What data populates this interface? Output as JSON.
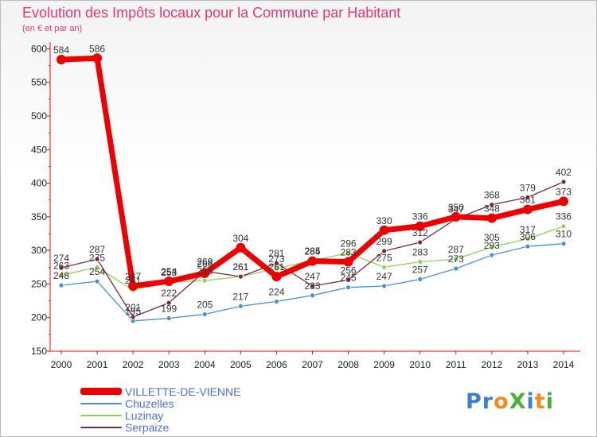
{
  "title": "Evolution des Impôts locaux pour la Commune par Habitant",
  "subtitle": "(en € et par an)",
  "logo": {
    "text": "ProXiti",
    "letter_colors": [
      "#3a7fd5",
      "#3a7fd5",
      "#f28b1e",
      "#4cae3c",
      "#3a7fd5",
      "#f28b1e",
      "#4cae3c"
    ]
  },
  "chart_data": {
    "type": "line",
    "title": "Evolution des Impôts locaux pour la Commune par Habitant",
    "ylabel": "(en € et par an)",
    "xlabel": "",
    "x": [
      "2000",
      "2001",
      "2002",
      "2003",
      "2004",
      "2005",
      "2006",
      "2007",
      "2008",
      "2009",
      "2010",
      "2011",
      "2012",
      "2013",
      "2014"
    ],
    "ylim": [
      150,
      610
    ],
    "yticks": [
      "150",
      "200",
      "250",
      "300",
      "350",
      "400",
      "450",
      "500",
      "550",
      "600"
    ],
    "grid": false,
    "legend_position": "bottom-left",
    "series": [
      {
        "name": "VILLETTE-DE-VIENNE",
        "color": "#ee0000",
        "values": [
          584,
          586,
          247,
          254,
          266,
          304,
          261,
          284,
          283,
          330,
          336,
          350,
          348,
          361,
          373
        ],
        "labels": [
          "584",
          "586",
          "247",
          "254",
          "266",
          "304",
          "261",
          "284",
          "283",
          "330",
          "336",
          "350",
          "348",
          "361",
          "373"
        ]
      },
      {
        "name": "Chuzelles",
        "color": "#4a90d0",
        "values": [
          248,
          254,
          195,
          199,
          205,
          217,
          224,
          233,
          245,
          247,
          257,
          273,
          293,
          306,
          310
        ],
        "labels": [
          "248",
          "254",
          "195",
          "199",
          "205",
          "217",
          "224",
          "233",
          "245",
          "247",
          "257",
          "273",
          "293",
          "306",
          "310"
        ]
      },
      {
        "name": "Luzinay",
        "color": "#8fd25a",
        "values": [
          263,
          275,
          241,
          253,
          255,
          261,
          273,
          285,
          296,
          275,
          283,
          287,
          305,
          317,
          336
        ],
        "labels": [
          "263",
          "275",
          "241",
          "253",
          "255",
          "261",
          "273",
          "285",
          "296",
          "275",
          "283",
          "287",
          "305",
          "317",
          "336"
        ]
      },
      {
        "name": "Serpaize",
        "color": "#7a2a3c",
        "values": [
          274,
          287,
          201,
          222,
          269,
          261,
          281,
          247,
          256,
          299,
          312,
          347,
          368,
          379,
          402
        ],
        "labels": [
          "274",
          "287",
          "201",
          "222",
          "269",
          "261",
          "281",
          "247",
          "256",
          "299",
          "312",
          "347",
          "368",
          "379",
          "402"
        ]
      }
    ]
  }
}
